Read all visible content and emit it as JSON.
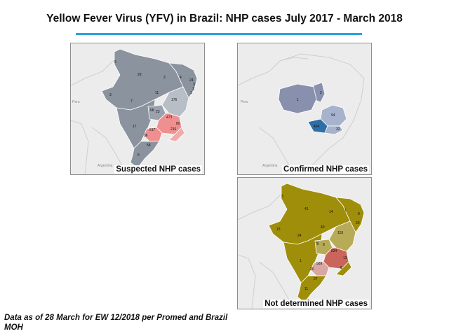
{
  "title": "Yellow Fever Virus (YFV) in Brazil: NHP cases July 2017 - March 2018",
  "footnote": {
    "line1": "Data as of 28 March for EW 12/2018 per Promed and Brazil",
    "line2": "MOH"
  },
  "panels": {
    "suspected": {
      "label": "Suspected NHP cases",
      "numbers": [
        "5",
        "29",
        "2",
        "4",
        "24",
        "3",
        "1",
        "1",
        "3",
        "7",
        "11",
        "176",
        "68",
        "23",
        "473",
        "17",
        "517",
        "80",
        "216",
        "36",
        "58",
        "6"
      ],
      "basemap": [
        "Peru",
        "Argentina"
      ]
    },
    "confirmed": {
      "label": "Confirmed NHP cases",
      "numbers": [
        "2",
        "1",
        "94",
        "434",
        "32"
      ],
      "basemap": [
        "Peru",
        "Argentina"
      ]
    },
    "not_determined": {
      "label": "Not determined NHP cases",
      "numbers": [
        "3",
        "41",
        "14",
        "1",
        "8",
        "13",
        "24",
        "40",
        "20",
        "155",
        "70",
        "8",
        "834",
        "1",
        "589",
        "13",
        "20",
        "27",
        "11",
        "8"
      ],
      "basemap": [
        "Peru",
        "Argentina"
      ]
    }
  },
  "colors": {
    "accent_rule": "#2aa3de",
    "suspected_low": "#8a939e",
    "suspected_mid": "#b8bec6",
    "suspected_high": "#ef8f8f",
    "confirmed_low": "#8890ad",
    "confirmed_mid": "#a7b3cc",
    "confirmed_high": "#2f6fa8",
    "not_determined_low": "#9f8e0a",
    "not_determined_mid": "#b8ab57",
    "not_determined_high": "#c9655a"
  }
}
